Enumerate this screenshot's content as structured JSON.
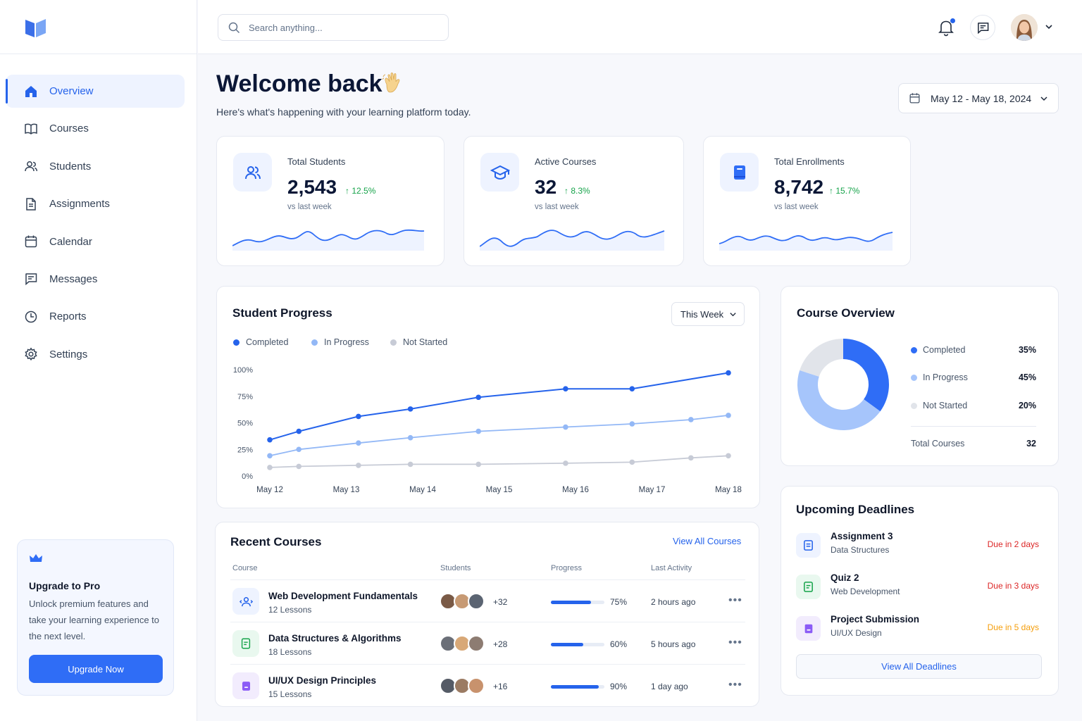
{
  "search": {
    "placeholder": "Search anything..."
  },
  "sidebar": {
    "items": [
      {
        "label": "Overview",
        "icon": "home-icon",
        "active": true
      },
      {
        "label": "Courses",
        "icon": "book-icon"
      },
      {
        "label": "Students",
        "icon": "users-icon"
      },
      {
        "label": "Assignments",
        "icon": "document-icon"
      },
      {
        "label": "Calendar",
        "icon": "calendar-icon"
      },
      {
        "label": "Messages",
        "icon": "message-icon"
      },
      {
        "label": "Reports",
        "icon": "clock-chart-icon"
      },
      {
        "label": "Settings",
        "icon": "gear-icon"
      }
    ],
    "promo": {
      "title": "Upgrade to Pro",
      "text": "Unlock premium features and take your learning experience to the next level.",
      "button": "Upgrade Now"
    }
  },
  "header": {
    "title": "Welcome back",
    "subtitle": "Here's what's happening with your learning platform today.",
    "date_range": "May 12 - May 18, 2024"
  },
  "stats": [
    {
      "label": "Total Students",
      "value": "2,543",
      "change": "12.5%",
      "period": "vs last week",
      "icon": "users-icon"
    },
    {
      "label": "Active Courses",
      "value": "32",
      "change": "8.3%",
      "period": "vs last week",
      "icon": "graduation-cap-icon"
    },
    {
      "label": "Total Enrollments",
      "value": "8,742",
      "change": "15.7%",
      "period": "vs last week",
      "icon": "book-icon"
    }
  ],
  "progress": {
    "title": "Student Progress",
    "filter": "This Week"
  },
  "chart_data": {
    "type": "line",
    "title": "Student Progress",
    "x": [
      "May 12",
      "May 13",
      "May 14",
      "May 15",
      "May 16",
      "May 17",
      "May 18"
    ],
    "yticks": [
      "100%",
      "75%",
      "50%",
      "25%",
      "0%"
    ],
    "ylim": [
      0,
      100
    ],
    "legend": "top-left",
    "series": [
      {
        "name": "Completed",
        "color": "#2563eb",
        "points": [
          [
            0.0,
            34
          ],
          [
            0.38,
            42
          ],
          [
            1.16,
            56
          ],
          [
            1.84,
            63
          ],
          [
            2.73,
            74
          ],
          [
            3.87,
            82
          ],
          [
            4.74,
            82
          ],
          [
            6.0,
            97
          ]
        ]
      },
      {
        "name": "In Progress",
        "color": "#93b8f6",
        "points": [
          [
            0.0,
            19
          ],
          [
            0.38,
            25
          ],
          [
            1.16,
            31
          ],
          [
            1.84,
            36
          ],
          [
            2.73,
            42
          ],
          [
            3.87,
            46
          ],
          [
            4.74,
            49
          ],
          [
            5.51,
            53
          ],
          [
            6.0,
            57
          ]
        ]
      },
      {
        "name": "Not Started",
        "color": "#c7cbd6",
        "points": [
          [
            0.0,
            8
          ],
          [
            0.38,
            9
          ],
          [
            1.16,
            10
          ],
          [
            1.84,
            11
          ],
          [
            2.73,
            11
          ],
          [
            3.87,
            12
          ],
          [
            4.74,
            13
          ],
          [
            5.51,
            17
          ],
          [
            6.0,
            19
          ]
        ]
      }
    ]
  },
  "overview": {
    "title": "Course Overview",
    "total_label": "Total Courses",
    "total_value": "32",
    "slices": [
      {
        "name": "Completed",
        "value": 35,
        "label": "35%",
        "color": "#2f6df6"
      },
      {
        "name": "In Progress",
        "value": 45,
        "label": "45%",
        "color": "#a6c5fb"
      },
      {
        "name": "Not Started",
        "value": 20,
        "label": "20%",
        "color": "#e1e4ea"
      }
    ]
  },
  "deadlines": {
    "title": "Upcoming Deadlines",
    "items": [
      {
        "title": "Assignment 3",
        "course": "Data Structures",
        "due": "Due in 2 days",
        "color": "#dc2626",
        "icon": "document-icon"
      },
      {
        "title": "Quiz 2",
        "course": "Web Development",
        "due": "Due in 3 days",
        "color": "#dc2626",
        "icon": "quiz-icon"
      },
      {
        "title": "Project Submission",
        "course": "UI/UX Design",
        "due": "Due in 5 days",
        "color": "#f59e0b",
        "icon": "folder-icon"
      }
    ],
    "button": "View All Deadlines"
  },
  "recent": {
    "title": "Recent Courses",
    "link": "View All Courses",
    "columns": [
      "Course",
      "Students",
      "Progress",
      "Last Activity"
    ],
    "rows": [
      {
        "name": "Web Development Fundamentals",
        "lessons": "12 Lessons",
        "more": "+32",
        "progress": 0.75,
        "pct": "75%",
        "last": "2 hours ago",
        "icon": "code-user-icon"
      },
      {
        "name": "Data Structures & Algorithms",
        "lessons": "18 Lessons",
        "more": "+28",
        "progress": 0.6,
        "pct": "60%",
        "last": "5 hours ago",
        "icon": "document-icon"
      },
      {
        "name": "UI/UX Design Principles",
        "lessons": "15 Lessons",
        "more": "+16",
        "progress": 0.9,
        "pct": "90%",
        "last": "1 day ago",
        "icon": "design-icon"
      }
    ]
  }
}
